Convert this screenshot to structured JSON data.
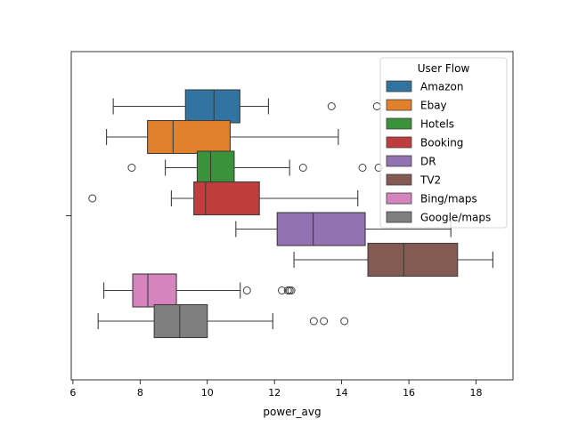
{
  "chart_data": {
    "type": "boxplot",
    "orientation": "horizontal",
    "title": "",
    "xlabel": "power_avg",
    "ylabel": "",
    "xlim": [
      5.95,
      19.1
    ],
    "xticks": [
      6,
      8,
      10,
      12,
      14,
      16,
      18
    ],
    "legend": {
      "title": "User Flow",
      "placement": "top-right"
    },
    "series": [
      {
        "name": "Amazon",
        "color": "#3274a1",
        "whisker_low": 7.2,
        "q1": 9.35,
        "median": 10.2,
        "q3": 10.97,
        "whisker_high": 11.82,
        "outliers": [
          13.7,
          15.05
        ]
      },
      {
        "name": "Ebay",
        "color": "#e1812c",
        "whisker_low": 7.0,
        "q1": 8.22,
        "median": 8.98,
        "q3": 10.68,
        "whisker_high": 13.9,
        "outliers": []
      },
      {
        "name": "Hotels",
        "color": "#3a923a",
        "whisker_low": 8.75,
        "q1": 9.7,
        "median": 10.1,
        "q3": 10.8,
        "whisker_high": 12.45,
        "outliers": [
          7.75,
          12.85,
          14.62,
          15.1
        ]
      },
      {
        "name": "Booking",
        "color": "#c03d3e",
        "whisker_low": 8.93,
        "q1": 9.6,
        "median": 9.95,
        "q3": 11.55,
        "whisker_high": 14.48,
        "outliers": [
          6.58
        ]
      },
      {
        "name": "DR",
        "color": "#9372b2",
        "whisker_low": 10.85,
        "q1": 12.08,
        "median": 13.15,
        "q3": 14.7,
        "whisker_high": 17.25,
        "outliers": []
      },
      {
        "name": "TV2",
        "color": "#845b53",
        "whisker_low": 12.58,
        "q1": 14.78,
        "median": 15.85,
        "q3": 17.45,
        "whisker_high": 18.5,
        "outliers": []
      },
      {
        "name": "Bing/maps",
        "color": "#d684bd",
        "whisker_low": 6.92,
        "q1": 7.78,
        "median": 8.23,
        "q3": 9.08,
        "whisker_high": 10.98,
        "outliers": [
          11.18,
          12.22,
          12.4,
          12.45,
          12.5
        ]
      },
      {
        "name": "Google/maps",
        "color": "#7f7f7f",
        "whisker_low": 6.75,
        "q1": 8.42,
        "median": 9.18,
        "q3": 10.0,
        "whisker_high": 11.95,
        "outliers": [
          13.17,
          13.47,
          14.08
        ]
      }
    ]
  }
}
